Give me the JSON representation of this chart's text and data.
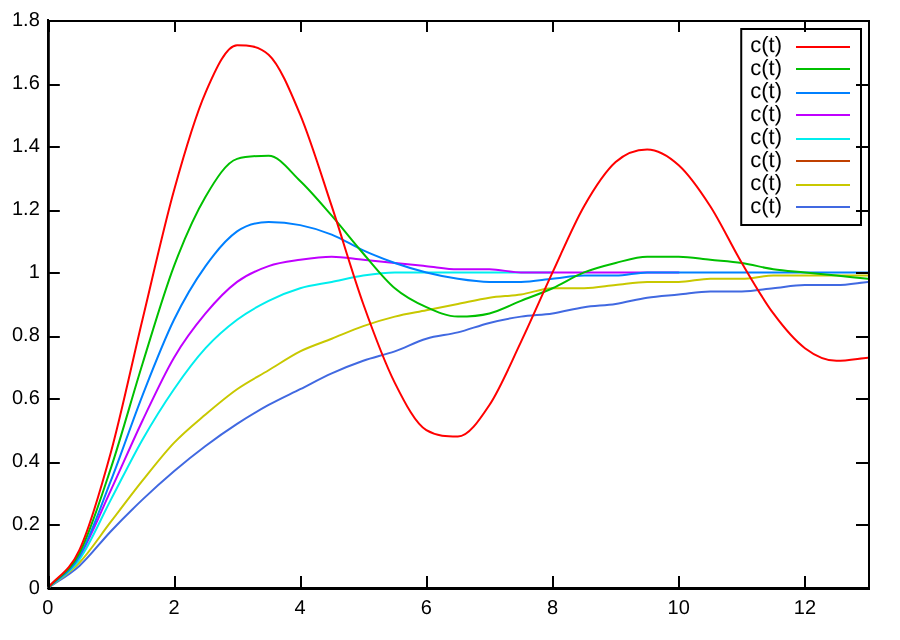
{
  "chart_data": {
    "type": "line",
    "x": [
      0,
      0.5,
      1,
      1.5,
      2,
      2.5,
      3,
      3.5,
      4,
      4.5,
      5,
      5.5,
      6,
      6.5,
      7,
      7.5,
      8,
      8.5,
      9,
      9.5,
      10,
      10.5,
      11,
      11.5,
      12,
      12.5,
      13
    ],
    "series": [
      {
        "name": "c(t)",
        "color": "#ff0000",
        "values": [
          0,
          0.12,
          0.43,
          0.85,
          1.26,
          1.57,
          1.72,
          1.69,
          1.5,
          1.21,
          0.9,
          0.65,
          0.5,
          0.48,
          0.58,
          0.78,
          1.0,
          1.21,
          1.35,
          1.39,
          1.34,
          1.21,
          1.03,
          0.87,
          0.76,
          0.72,
          0.73
        ]
      },
      {
        "name": "c(t)",
        "color": "#00c000",
        "values": [
          0,
          0.11,
          0.38,
          0.71,
          1.02,
          1.24,
          1.36,
          1.37,
          1.29,
          1.18,
          1.06,
          0.95,
          0.89,
          0.86,
          0.87,
          0.91,
          0.95,
          1.0,
          1.03,
          1.05,
          1.05,
          1.04,
          1.03,
          1.01,
          1.0,
          0.99,
          0.98
        ]
      },
      {
        "name": "c(t)",
        "color": "#0080ff",
        "values": [
          0,
          0.1,
          0.34,
          0.61,
          0.85,
          1.02,
          1.13,
          1.16,
          1.15,
          1.12,
          1.07,
          1.03,
          1.0,
          0.98,
          0.97,
          0.97,
          0.98,
          0.99,
          0.99,
          1.0,
          1.0,
          1.0,
          1.0,
          1.0,
          1.0,
          1.0,
          1.0
        ]
      },
      {
        "name": "c(t)",
        "color": "#c000ff",
        "values": [
          0,
          0.1,
          0.31,
          0.53,
          0.73,
          0.87,
          0.97,
          1.02,
          1.04,
          1.05,
          1.04,
          1.03,
          1.02,
          1.01,
          1.01,
          1.0,
          1.0,
          1.0,
          1.0,
          1.0,
          1.0,
          null,
          null,
          null,
          null,
          null,
          null
        ]
      },
      {
        "name": "c(t)",
        "color": "#00eeee",
        "values": [
          0,
          0.09,
          0.28,
          0.47,
          0.63,
          0.76,
          0.85,
          0.91,
          0.95,
          0.97,
          0.99,
          1.0,
          1.0,
          1.0,
          1.0,
          1.0,
          1.0,
          null,
          null,
          null,
          null,
          null,
          null,
          null,
          null,
          null,
          null
        ]
      },
      {
        "name": "c(t)",
        "color": "#c04000",
        "values": [
          null,
          null,
          null,
          null,
          null,
          null,
          null,
          null,
          null,
          null,
          null,
          null,
          null,
          null,
          null,
          null,
          null,
          null,
          null,
          null,
          null,
          null,
          null,
          null,
          null,
          null,
          null
        ]
      },
      {
        "name": "c(t)",
        "color": "#c8c800",
        "values": [
          0,
          0.08,
          0.21,
          0.34,
          0.46,
          0.55,
          0.63,
          0.69,
          0.75,
          0.79,
          0.83,
          0.86,
          0.88,
          0.9,
          0.92,
          0.93,
          0.95,
          0.95,
          0.96,
          0.97,
          0.97,
          0.98,
          0.98,
          0.99,
          0.99,
          0.99,
          0.99
        ]
      },
      {
        "name": "c(t)",
        "color": "#4169e1",
        "values": [
          0,
          0.07,
          0.18,
          0.28,
          0.37,
          0.45,
          0.52,
          0.58,
          0.63,
          0.68,
          0.72,
          0.75,
          0.79,
          0.81,
          0.84,
          0.86,
          0.87,
          0.89,
          0.9,
          0.92,
          0.93,
          0.94,
          0.94,
          0.95,
          0.96,
          0.96,
          0.97
        ]
      }
    ],
    "xlim": [
      0,
      13
    ],
    "xticks": [
      0,
      2,
      4,
      6,
      8,
      10,
      12
    ],
    "ylim": [
      0,
      1.8
    ],
    "yticks": [
      0,
      0.2,
      0.4,
      0.6,
      0.8,
      1,
      1.2,
      1.4,
      1.6,
      1.8
    ],
    "grid": false,
    "legend": "top right",
    "marker": "none",
    "line_style": "solid"
  }
}
